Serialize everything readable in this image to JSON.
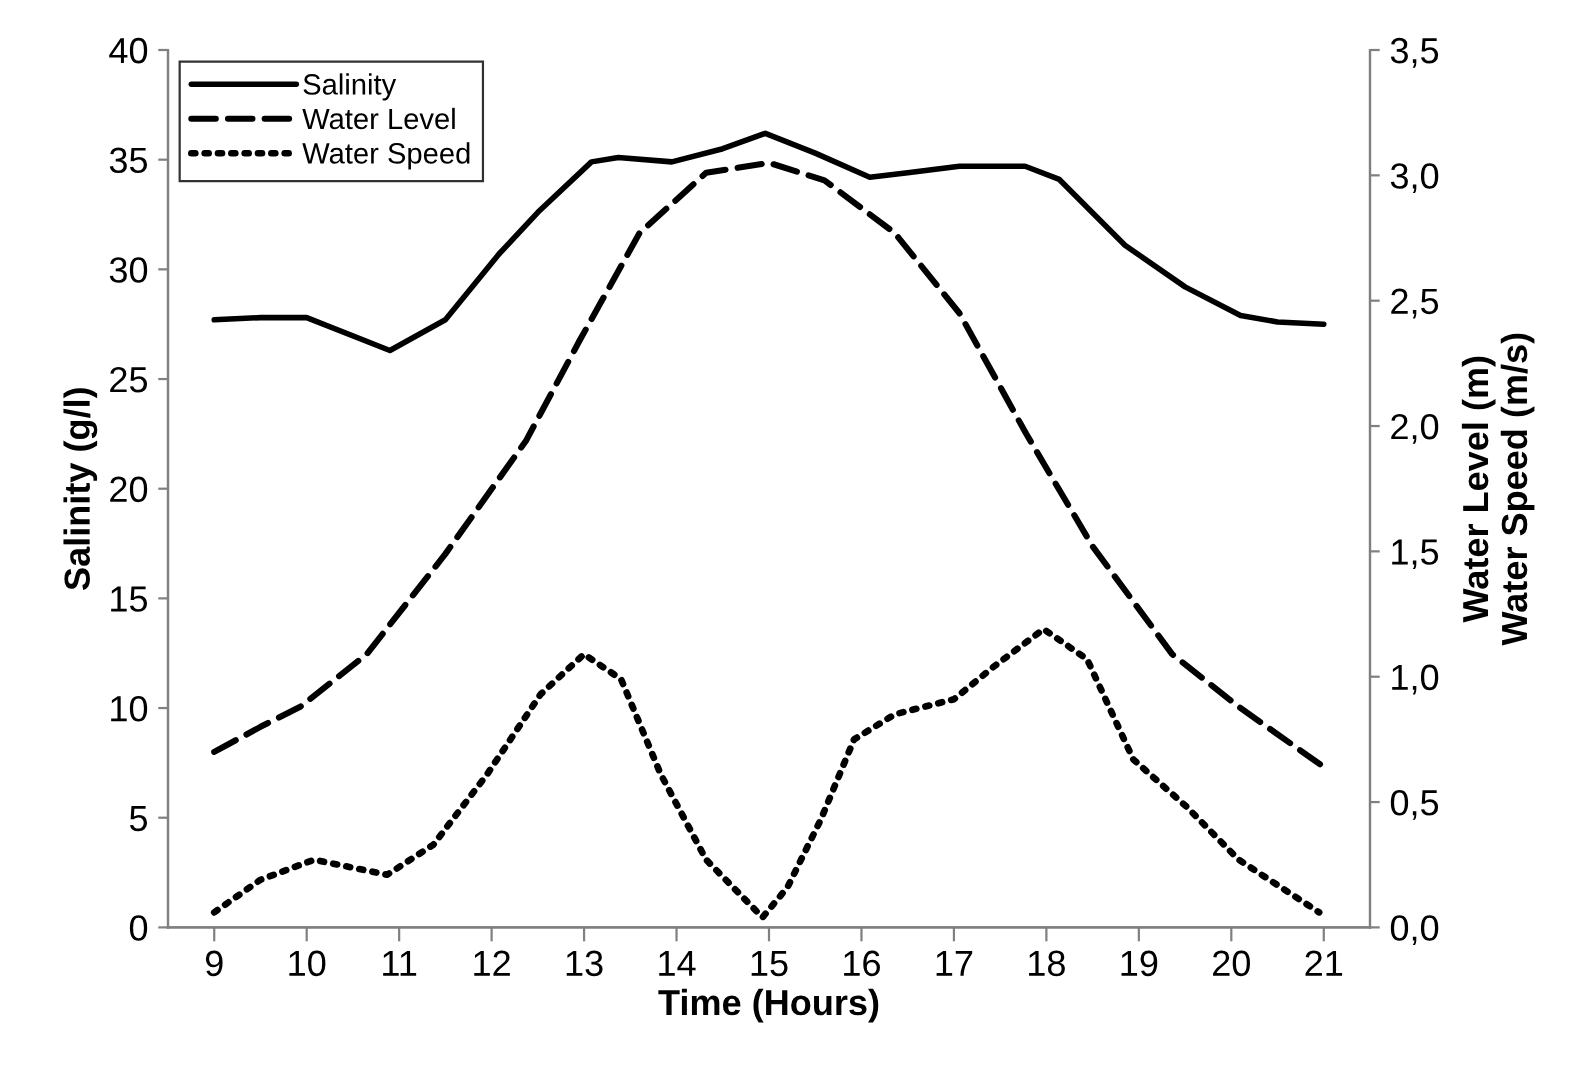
{
  "chart_data": {
    "type": "line",
    "xlabel": "Time (Hours)",
    "ylabel": "Salinity (g/l)",
    "y2label": "Water Level (m)\nWater Speed (m/s)",
    "xlim": [
      8.5,
      21.5
    ],
    "xticks": [
      9,
      10,
      11,
      12,
      13,
      14,
      15,
      16,
      17,
      18,
      19,
      20,
      21
    ],
    "ylim": [
      0,
      40
    ],
    "yticks": [
      0,
      5,
      10,
      15,
      20,
      25,
      30,
      35,
      40
    ],
    "y2lim": [
      0,
      3.5
    ],
    "y2ticks": [
      {
        "value": 0,
        "label": "0,0"
      },
      {
        "value": 0.5,
        "label": "0,5"
      },
      {
        "value": 1,
        "label": "1,0"
      },
      {
        "value": 1.5,
        "label": "1,5"
      },
      {
        "value": 2,
        "label": "2,0"
      },
      {
        "value": 2.5,
        "label": "2,5"
      },
      {
        "value": 3,
        "label": "3,0"
      },
      {
        "value": 3.5,
        "label": "3,5"
      }
    ],
    "grid": false,
    "legend": "top left",
    "marker": "none",
    "series": [
      {
        "name": "Salinity",
        "color": "#000000",
        "line_style": "solid",
        "x": [
          9,
          9.5,
          10,
          10.9,
          11.5,
          12.08,
          12.5,
          13.08,
          13.37,
          13.95,
          14.5,
          14.96,
          15.5,
          16.09,
          16.5,
          17.06,
          17.77,
          18.14,
          18.85,
          19.5,
          20.1,
          20.5,
          21
        ],
        "values": [
          27.7,
          27.8,
          27.8,
          26.3,
          27.7,
          30.7,
          32.6,
          34.9,
          35.1,
          34.9,
          35.5,
          36.2,
          35.3,
          34.2,
          34.4,
          34.7,
          34.7,
          34.1,
          31.1,
          29.2,
          27.9,
          27.6,
          27.5
        ]
      },
      {
        "name": "Water Level",
        "color": "#000000",
        "line_style": "dashed",
        "axis": "y2",
        "x": [
          9,
          9.5,
          9.93,
          10.65,
          11.5,
          12.37,
          12.95,
          13.6,
          14.32,
          15,
          15.6,
          16.36,
          17.06,
          17.78,
          18.5,
          19.36,
          20.08,
          21
        ],
        "values": [
          0.7,
          0.8,
          0.88,
          1.09,
          1.49,
          1.94,
          2.34,
          2.77,
          3.01,
          3.05,
          2.98,
          2.77,
          2.45,
          1.97,
          1.52,
          1.09,
          0.88,
          0.64
        ]
      },
      {
        "name": "Water Speed",
        "color": "#000000",
        "line_style": "dotted",
        "axis": "y2",
        "x": [
          9,
          9.5,
          10.08,
          10.87,
          11.37,
          11.95,
          12.53,
          13.0,
          13.4,
          13.83,
          14.32,
          14.93,
          15.2,
          15.56,
          15.92,
          16.36,
          17.0,
          17.43,
          17.97,
          18.44,
          18.94,
          19.52,
          20.08,
          20.95
        ],
        "values": [
          0.06,
          0.19,
          0.27,
          0.21,
          0.33,
          0.61,
          0.93,
          1.09,
          0.99,
          0.61,
          0.27,
          0.04,
          0.16,
          0.43,
          0.75,
          0.85,
          0.91,
          1.04,
          1.19,
          1.07,
          0.67,
          0.48,
          0.27,
          0.06
        ]
      }
    ]
  }
}
